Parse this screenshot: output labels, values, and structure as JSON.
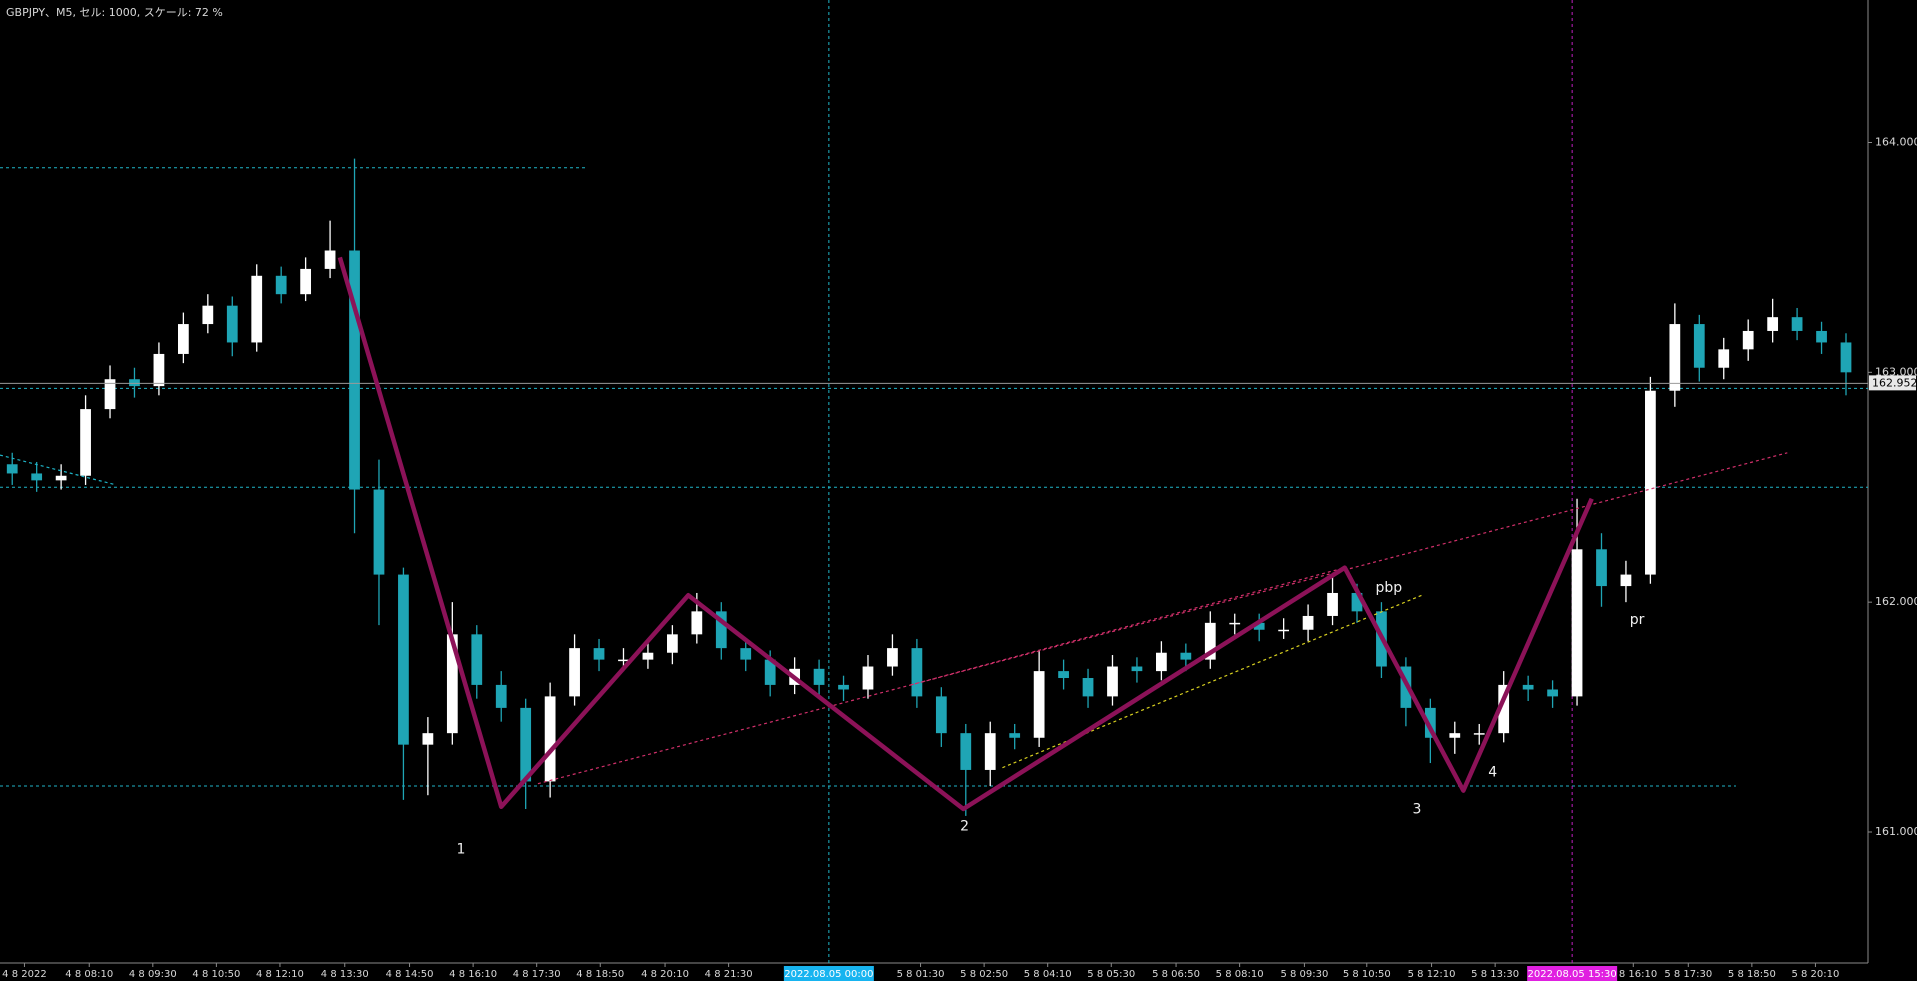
{
  "chart_data": {
    "type": "candlestick",
    "title": "GBPJPY、M5, セル: 1000, スケール: 72 %",
    "up_color": "#ffffff",
    "down_color": "#1fa5b5",
    "open": [
      162.6,
      162.56,
      162.53,
      162.55,
      162.84,
      162.97,
      162.94,
      163.08,
      163.21,
      163.29,
      163.13,
      163.42,
      163.34,
      163.45,
      163.53,
      162.49,
      162.12,
      161.38,
      161.43,
      161.86,
      161.64,
      161.54,
      161.22,
      161.59,
      161.8,
      161.75,
      161.75,
      161.78,
      161.86,
      161.96,
      161.8,
      161.75,
      161.64,
      161.71,
      161.64,
      161.62,
      161.72,
      161.8,
      161.59,
      161.43,
      161.27,
      161.43,
      161.41,
      161.7,
      161.67,
      161.59,
      161.72,
      161.7,
      161.78,
      161.75,
      161.91,
      161.91,
      161.88,
      161.88,
      161.94,
      162.04,
      161.96,
      161.72,
      161.54,
      161.41,
      161.43,
      161.43,
      161.64,
      161.62,
      161.59,
      162.23,
      162.07,
      162.12,
      162.92,
      163.21,
      163.02,
      163.1,
      163.18,
      163.24,
      163.18,
      163.13
    ],
    "high": [
      162.65,
      162.61,
      162.6,
      162.9,
      163.03,
      163.02,
      163.13,
      163.26,
      163.34,
      163.33,
      163.47,
      163.46,
      163.5,
      163.66,
      163.93,
      162.62,
      162.15,
      161.5,
      162.0,
      161.9,
      161.7,
      161.58,
      161.65,
      161.86,
      161.84,
      161.8,
      161.83,
      161.9,
      162.04,
      162.0,
      161.84,
      161.79,
      161.76,
      161.75,
      161.68,
      161.77,
      161.86,
      161.84,
      161.63,
      161.47,
      161.48,
      161.47,
      161.79,
      161.75,
      161.71,
      161.77,
      161.76,
      161.83,
      161.82,
      161.96,
      161.95,
      161.95,
      161.93,
      161.99,
      162.12,
      162.08,
      162.0,
      161.76,
      161.58,
      161.48,
      161.47,
      161.7,
      161.68,
      161.66,
      162.45,
      162.3,
      162.18,
      162.98,
      163.3,
      163.25,
      163.15,
      163.23,
      163.32,
      163.28,
      163.22,
      163.17
    ],
    "low": [
      162.51,
      162.48,
      162.49,
      162.51,
      162.8,
      162.89,
      162.9,
      163.04,
      163.17,
      163.07,
      163.09,
      163.3,
      163.31,
      163.41,
      162.3,
      161.9,
      161.14,
      161.16,
      161.38,
      161.58,
      161.48,
      161.1,
      161.15,
      161.55,
      161.7,
      161.7,
      161.71,
      161.73,
      161.82,
      161.75,
      161.7,
      161.59,
      161.6,
      161.59,
      161.57,
      161.58,
      161.68,
      161.54,
      161.37,
      161.07,
      161.2,
      161.36,
      161.37,
      161.62,
      161.54,
      161.55,
      161.65,
      161.66,
      161.7,
      161.71,
      161.86,
      161.83,
      161.84,
      161.83,
      161.9,
      161.91,
      161.67,
      161.46,
      161.3,
      161.34,
      161.38,
      161.39,
      161.57,
      161.54,
      161.55,
      161.98,
      162.0,
      162.08,
      162.85,
      162.96,
      162.97,
      163.05,
      163.13,
      163.14,
      163.08,
      162.9
    ],
    "close": [
      162.56,
      162.53,
      162.55,
      162.84,
      162.97,
      162.94,
      163.08,
      163.21,
      163.29,
      163.13,
      163.42,
      163.34,
      163.45,
      163.53,
      162.49,
      162.12,
      161.38,
      161.43,
      161.86,
      161.64,
      161.54,
      161.22,
      161.59,
      161.8,
      161.75,
      161.75,
      161.78,
      161.86,
      161.96,
      161.8,
      161.75,
      161.64,
      161.71,
      161.64,
      161.62,
      161.72,
      161.8,
      161.59,
      161.43,
      161.27,
      161.43,
      161.41,
      161.7,
      161.67,
      161.59,
      161.72,
      161.7,
      161.78,
      161.75,
      161.91,
      161.91,
      161.88,
      161.88,
      161.94,
      162.04,
      161.96,
      161.72,
      161.54,
      161.41,
      161.43,
      161.43,
      161.64,
      161.62,
      161.59,
      162.23,
      162.07,
      162.12,
      162.92,
      163.21,
      163.02,
      163.1,
      163.18,
      163.24,
      163.18,
      163.13,
      163.0
    ],
    "xlim": [
      0,
      76.4
    ],
    "ylim": [
      160.43,
      164.62
    ],
    "yticks": [
      {
        "value": 164,
        "label": "164.000"
      },
      {
        "value": 163,
        "label": "163.000"
      },
      {
        "value": 162,
        "label": "162.000"
      },
      {
        "value": 161,
        "label": "161.000"
      }
    ],
    "xticks": [
      {
        "value": 1.0,
        "label": "4 8 2022"
      },
      {
        "value": 3.65,
        "label": "4 8 08:10"
      },
      {
        "value": 6.25,
        "label": "4 8 09:30"
      },
      {
        "value": 8.85,
        "label": "4 8 10:50"
      },
      {
        "value": 11.45,
        "label": "4 8 12:10"
      },
      {
        "value": 14.1,
        "label": "4 8 13:30"
      },
      {
        "value": 16.75,
        "label": "4 8 14:50"
      },
      {
        "value": 19.35,
        "label": "4 8 16:10"
      },
      {
        "value": 21.95,
        "label": "4 8 17:30"
      },
      {
        "value": 24.55,
        "label": "4 8 18:50"
      },
      {
        "value": 27.2,
        "label": "4 8 20:10"
      },
      {
        "value": 29.8,
        "label": "4 8 21:30"
      },
      {
        "value": 37.65,
        "label": "5 8 01:30"
      },
      {
        "value": 40.25,
        "label": "5 8 02:50"
      },
      {
        "value": 42.85,
        "label": "5 8 04:10"
      },
      {
        "value": 45.45,
        "label": "5 8 05:30"
      },
      {
        "value": 48.1,
        "label": "5 8 06:50"
      },
      {
        "value": 50.7,
        "label": "5 8 08:10"
      },
      {
        "value": 53.35,
        "label": "5 8 09:30"
      },
      {
        "value": 55.9,
        "label": "5 8 10:50"
      },
      {
        "value": 58.55,
        "label": "5 8 12:10"
      },
      {
        "value": 61.15,
        "label": "5 8 13:30"
      },
      {
        "value": 66.8,
        "label": "5 8 16:10"
      },
      {
        "value": 69.05,
        "label": "5 8 17:30"
      },
      {
        "value": 71.65,
        "label": "5 8 18:50"
      },
      {
        "value": 74.25,
        "label": "5 8 20:10"
      }
    ],
    "current_price": 162.952,
    "hline_color": "#1fb5c8",
    "hlines": [
      {
        "value": 163.89,
        "x": [
          0,
          24
        ]
      },
      {
        "value": 162.93,
        "x": [
          0,
          76.4
        ]
      },
      {
        "value": 162.5,
        "x": [
          0,
          76.4
        ]
      },
      {
        "value": 161.2,
        "x": [
          0,
          71
        ]
      }
    ],
    "vlines": [
      {
        "value": 33.9,
        "label": "2022.08.05 00:00",
        "color": "#1fb5c8",
        "box_color": "#17b4f0"
      },
      {
        "value": 64.3,
        "label": "2022.08.05 15:30",
        "color": "#c020c0",
        "box_color": "#e020e0"
      }
    ],
    "zigzag": {
      "color": "#8c1258",
      "x": [
        13.9,
        20.5,
        28.15,
        39.4,
        55,
        59.85,
        65.1
      ],
      "values": [
        163.5,
        161.11,
        162.03,
        161.1,
        162.15,
        161.18,
        162.45
      ]
    },
    "trendlines": [
      {
        "color": "#d0306a",
        "x": [
          22,
          73.1
        ],
        "values": [
          161.21,
          162.65
        ]
      },
      {
        "color": "#d0306a",
        "x": [
          37.25,
          55
        ],
        "values": [
          161.64,
          162.15
        ]
      },
      {
        "color": "#d8d020",
        "x": [
          41,
          58.15
        ],
        "values": [
          161.28,
          162.03
        ]
      },
      {
        "color": "#1fb5c8",
        "x": [
          0,
          4.75
        ],
        "values": [
          162.64,
          162.51
        ]
      }
    ],
    "annotations": [
      "1",
      "2",
      "3",
      "4",
      "pbp",
      "pr"
    ]
  }
}
